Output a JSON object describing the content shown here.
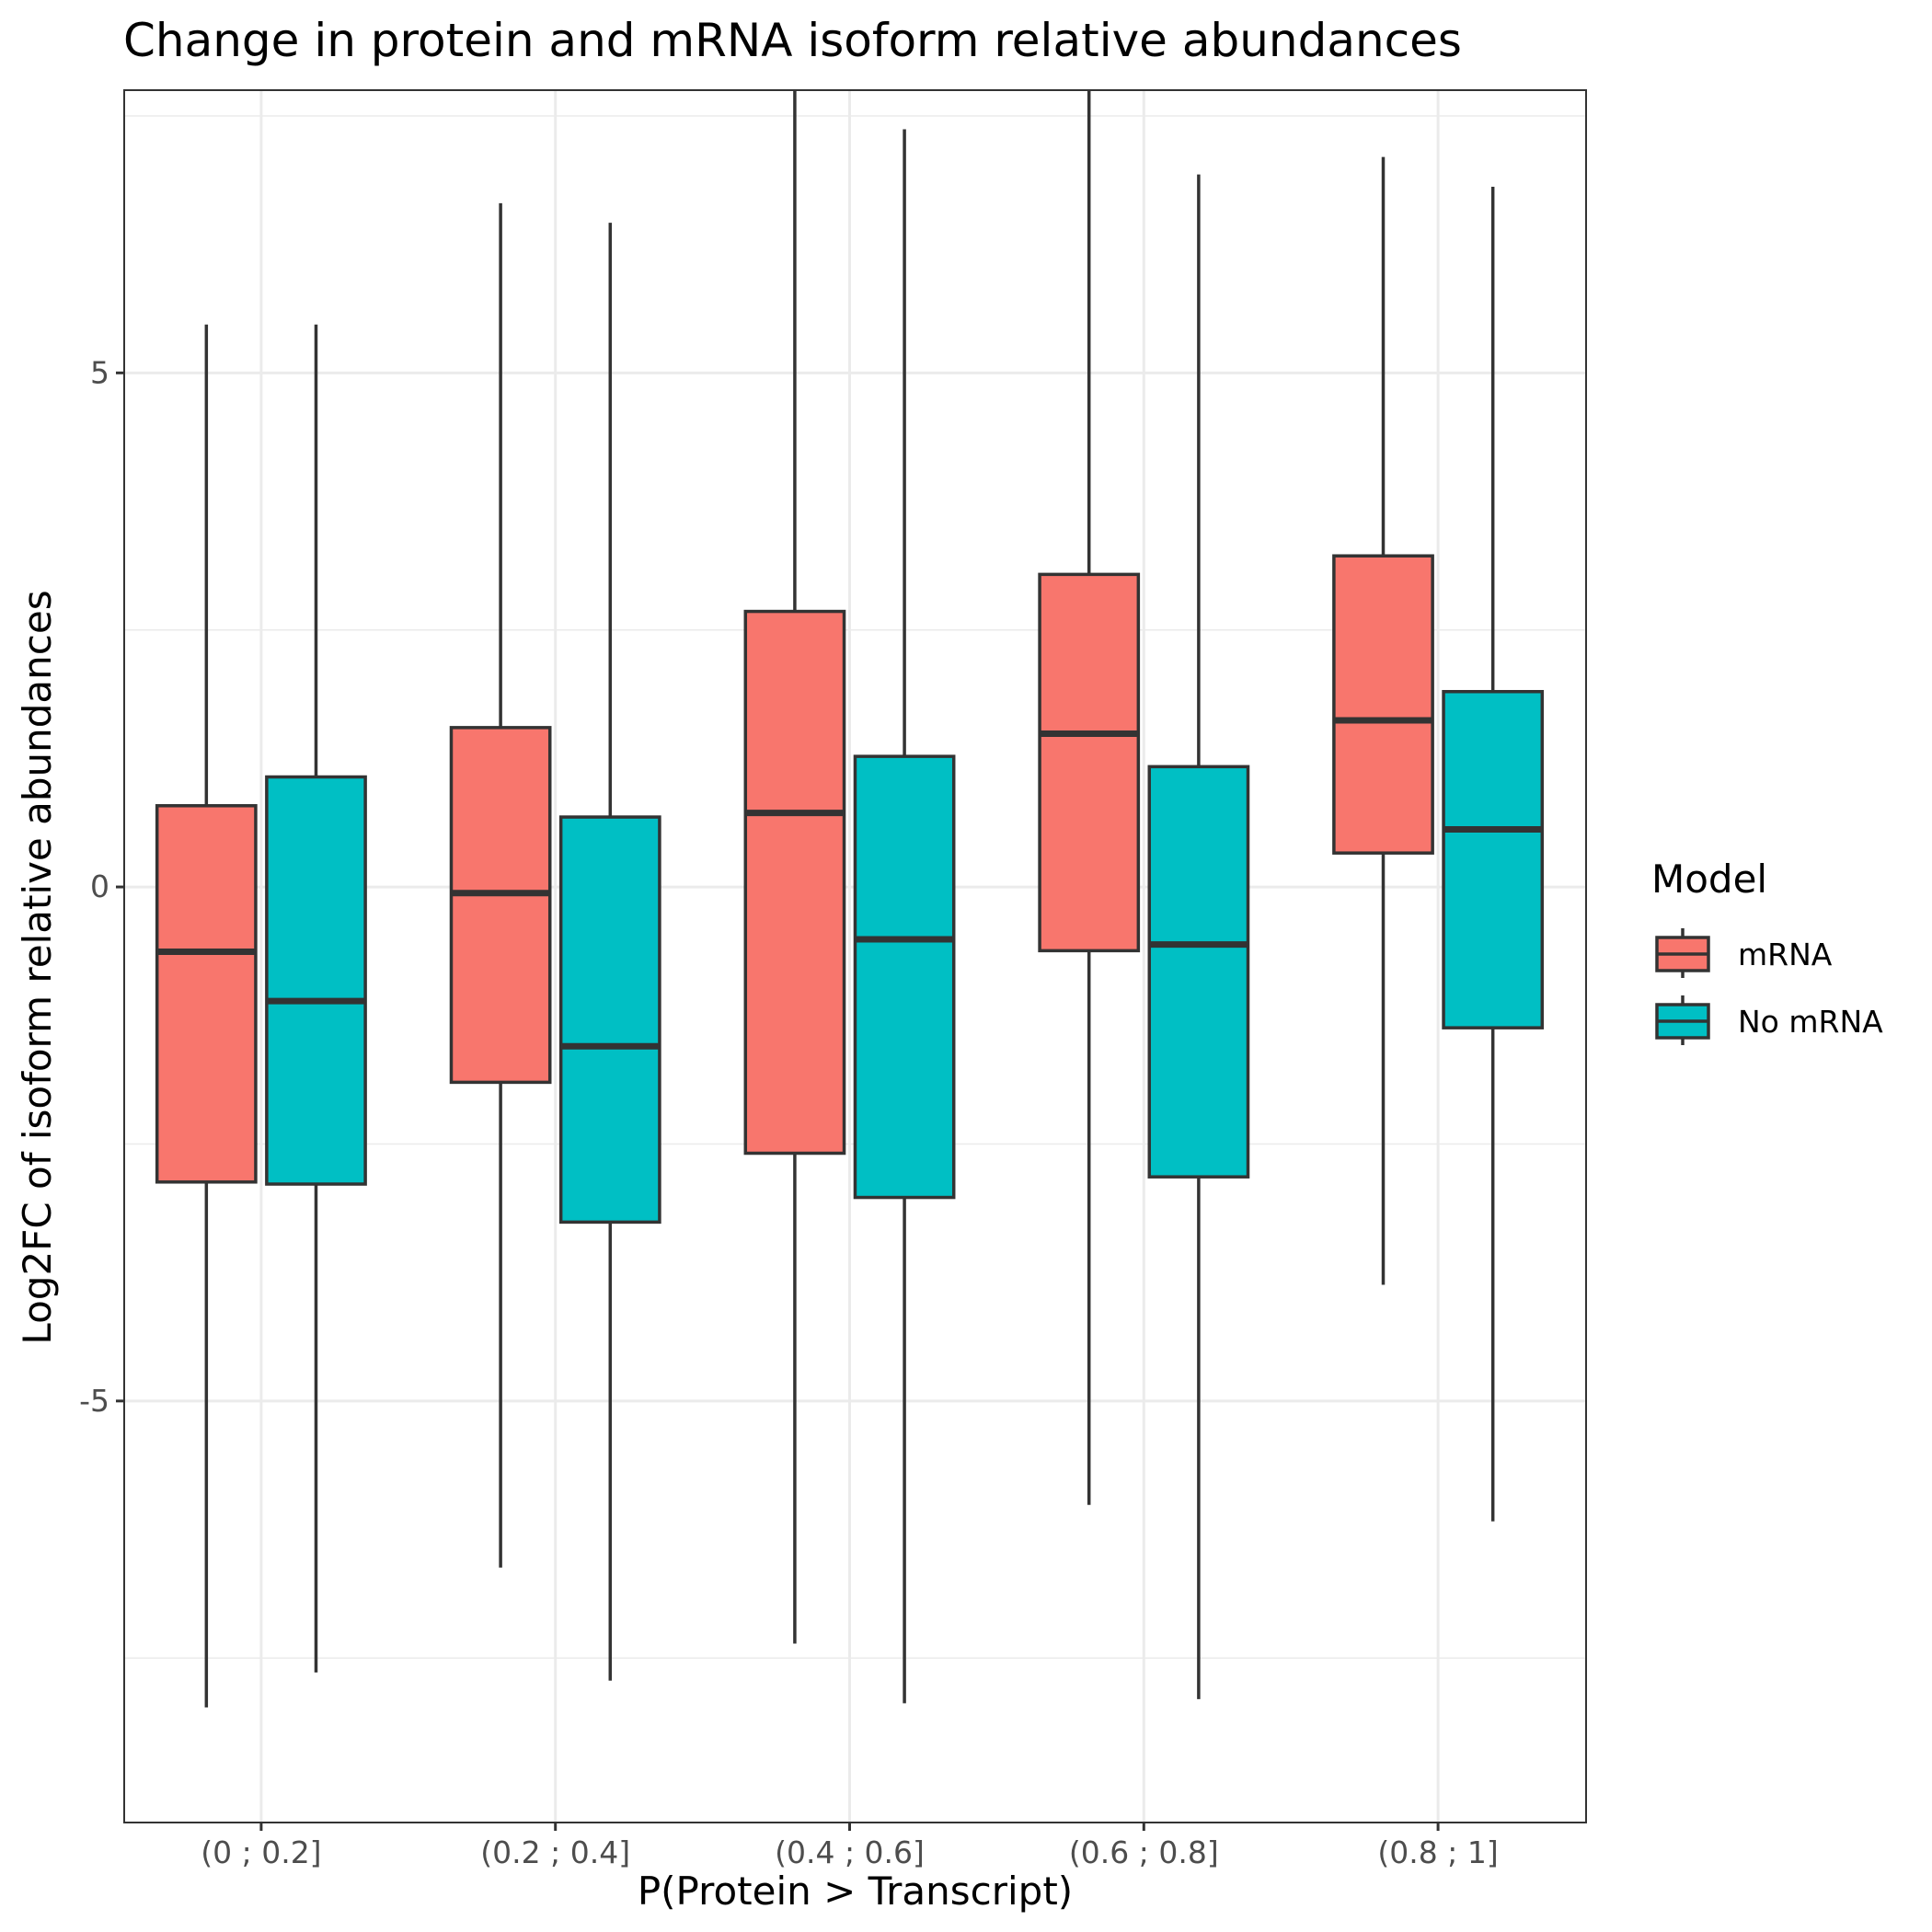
{
  "chart_data": {
    "type": "box",
    "title": "Change in protein and mRNA isoform relative abundances",
    "xlabel": "P(Protein > Transcript)",
    "ylabel": "Log2FC of isoform relative abundances",
    "categories": [
      "(0 ; 0.2]",
      "(0.2 ; 0.4]",
      "(0.4 ; 0.6]",
      "(0.6 ; 0.8]",
      "(0.8 ; 1]"
    ],
    "ylim": [
      -9.1,
      7.75
    ],
    "y_ticks": [
      5,
      0,
      -5
    ],
    "y_tick_labels": [
      "5",
      "0",
      "-5"
    ],
    "grid": true,
    "legend": {
      "title": "Model",
      "position": "right",
      "entries": [
        "mRNA",
        "No mRNA"
      ]
    },
    "series": [
      {
        "name": "mRNA",
        "color": "#F8766D",
        "boxes": [
          {
            "category": "(0 ; 0.2]",
            "whisker_low": -7.98,
            "q1": -2.87,
            "median": -0.63,
            "q3": 0.79,
            "whisker_high": 5.47
          },
          {
            "category": "(0.2 ; 0.4]",
            "whisker_low": -6.62,
            "q1": -1.9,
            "median": -0.06,
            "q3": 1.55,
            "whisker_high": 6.65
          },
          {
            "category": "(0.4 ; 0.6]",
            "whisker_low": -7.36,
            "q1": -2.59,
            "median": 0.72,
            "q3": 2.68,
            "whisker_high": 7.75
          },
          {
            "category": "(0.6 ; 0.8]",
            "whisker_low": -6.01,
            "q1": -0.62,
            "median": 1.49,
            "q3": 3.04,
            "whisker_high": 7.75
          },
          {
            "category": "(0.8 ; 1]",
            "whisker_low": -3.87,
            "q1": 0.33,
            "median": 1.62,
            "q3": 3.22,
            "whisker_high": 7.1
          }
        ]
      },
      {
        "name": "No mRNA",
        "color": "#00BFC4",
        "boxes": [
          {
            "category": "(0 ; 0.2]",
            "whisker_low": -7.64,
            "q1": -2.89,
            "median": -1.11,
            "q3": 1.07,
            "whisker_high": 5.47
          },
          {
            "category": "(0.2 ; 0.4]",
            "whisker_low": -7.72,
            "q1": -3.26,
            "median": -1.55,
            "q3": 0.68,
            "whisker_high": 6.46
          },
          {
            "category": "(0.4 ; 0.6]",
            "whisker_low": -7.94,
            "q1": -3.02,
            "median": -0.51,
            "q3": 1.27,
            "whisker_high": 7.37
          },
          {
            "category": "(0.6 ; 0.8]",
            "whisker_low": -7.9,
            "q1": -2.82,
            "median": -0.56,
            "q3": 1.17,
            "whisker_high": 6.93
          },
          {
            "category": "(0.8 ; 1]",
            "whisker_low": -6.17,
            "q1": -1.37,
            "median": 0.56,
            "q3": 1.9,
            "whisker_high": 6.81
          }
        ]
      }
    ]
  }
}
